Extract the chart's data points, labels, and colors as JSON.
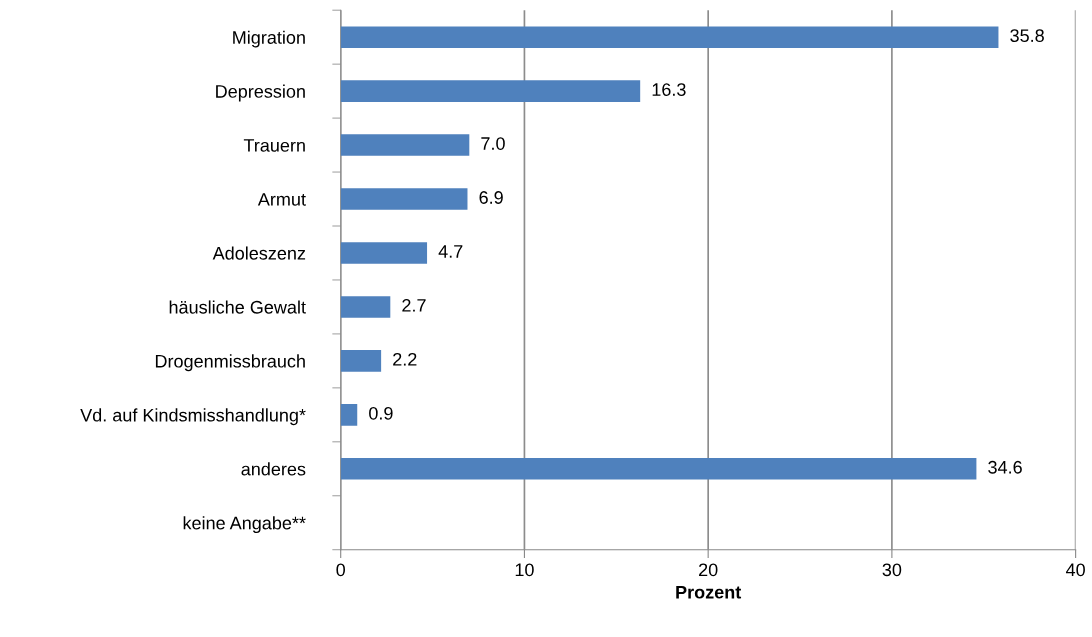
{
  "chart_data": {
    "type": "bar",
    "orientation": "horizontal",
    "xlabel": "Prozent",
    "categories": [
      "Migration",
      "Depression",
      "Trauern",
      "Armut",
      "Adoleszenz",
      "häusliche Gewalt",
      "Drogenmissbrauch",
      "Vd. auf Kindsmisshandlung*",
      "anderes",
      "keine Angabe**"
    ],
    "values": [
      35.8,
      16.3,
      7.0,
      6.9,
      4.7,
      2.7,
      2.2,
      0.9,
      34.6,
      null
    ],
    "color": "#4f81bd",
    "xlim": [
      0,
      40
    ],
    "xticks": [
      0,
      10,
      20,
      30,
      40
    ],
    "value_labels": [
      "35.8",
      "16.3",
      "7.0",
      "6.9",
      "4.7",
      "2.7",
      "2.2",
      "0.9",
      "34.6",
      null
    ],
    "grid": "x",
    "legend": false
  }
}
